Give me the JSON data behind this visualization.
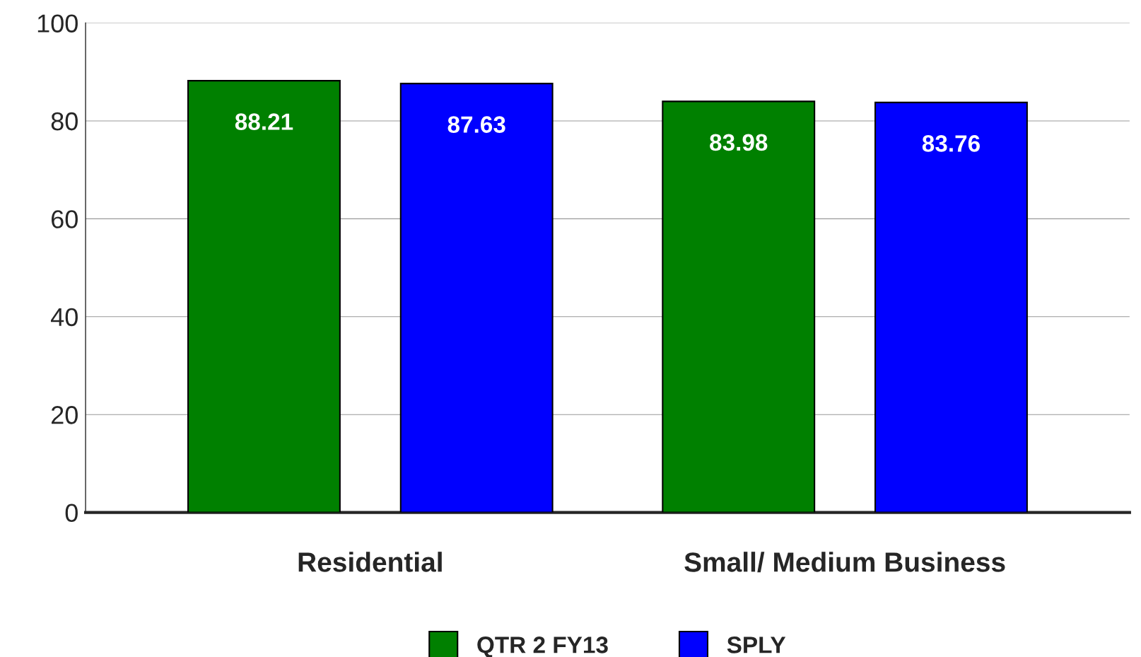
{
  "chart_data": {
    "type": "bar",
    "categories": [
      "Residential",
      "Small/ Medium Business"
    ],
    "series": [
      {
        "name": "QTR 2 FY13",
        "color": "#008000",
        "values": [
          88.21,
          83.98
        ]
      },
      {
        "name": "SPLY",
        "color": "#0000ff",
        "values": [
          87.63,
          83.76
        ]
      }
    ],
    "ylim": [
      0,
      100
    ],
    "yticks": [
      0,
      20,
      40,
      60,
      80,
      100
    ],
    "grid": "y",
    "legend": "bottom",
    "data_labels": true
  }
}
